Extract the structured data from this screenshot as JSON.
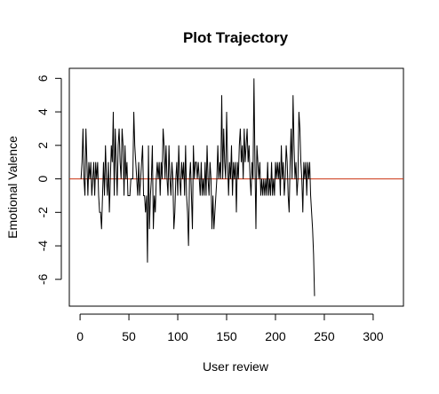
{
  "chart_data": {
    "type": "line",
    "title": "Plot Trajectory",
    "xlabel": "User review",
    "ylabel": "Emotional Valence",
    "xlim": [
      -11,
      331
    ],
    "ylim": [
      -7.6,
      6.6
    ],
    "x_ticks": [
      0,
      50,
      100,
      150,
      200,
      250,
      300
    ],
    "y_ticks": [
      -6,
      -4,
      -2,
      0,
      2,
      4,
      6
    ],
    "grid": false,
    "reference_line": {
      "y": 0,
      "color": "#cc3311"
    },
    "colors": {
      "series": "#000000",
      "axis": "#000000",
      "reference": "#cc3311"
    },
    "series": [
      {
        "values": [
          0,
          1,
          3,
          0,
          -1,
          3,
          1,
          -1,
          1,
          0,
          1,
          -1,
          0,
          1,
          -1,
          1,
          0,
          1,
          -1,
          -2,
          -2,
          -3,
          -1,
          1,
          -1,
          2,
          0,
          -1,
          1,
          -2,
          0,
          2,
          1,
          4,
          -1,
          3,
          1,
          -1,
          2,
          3,
          1,
          0,
          3,
          2,
          -1,
          2,
          0,
          1,
          -1,
          -1,
          -1,
          0,
          0,
          0,
          4,
          2,
          1,
          0,
          -1,
          1,
          -1,
          0,
          1,
          2,
          -1,
          -1,
          -2,
          -1,
          -5,
          2,
          -3,
          -1,
          0,
          2,
          -3,
          -1,
          -2,
          0,
          1,
          0,
          1,
          -1,
          1,
          0,
          3,
          2,
          0,
          2,
          0,
          -1,
          2,
          0,
          -1,
          1,
          0,
          -3,
          -2,
          0,
          1,
          -1,
          2,
          0,
          -1,
          1,
          0,
          1,
          -1,
          2,
          -1,
          -2,
          -4,
          0,
          1,
          -1,
          -3,
          2,
          0,
          1,
          1,
          0,
          1,
          0,
          -1,
          1,
          -1,
          0,
          -1,
          1,
          -1,
          2,
          0,
          -1,
          1,
          0,
          -3,
          -1,
          -3,
          -2,
          -1,
          0,
          2,
          0,
          1,
          0,
          5,
          0,
          3,
          1,
          0,
          4,
          1,
          -1,
          1,
          0,
          2,
          -1,
          1,
          0,
          1,
          -2,
          1,
          0,
          2,
          3,
          1,
          2,
          0,
          3,
          1,
          2,
          3,
          1,
          2,
          0,
          -1,
          1,
          0,
          6,
          1,
          -3,
          2,
          1,
          0,
          1,
          -1,
          0,
          -1,
          0,
          -1,
          0,
          -1,
          1,
          -1,
          0,
          -1,
          1,
          -1,
          0,
          -1,
          1,
          0,
          1,
          0,
          1,
          -1,
          2,
          0,
          1,
          -1,
          0,
          2,
          1,
          -1,
          -2,
          1,
          3,
          0,
          5,
          2,
          0,
          1,
          -1,
          0,
          4,
          3,
          1,
          0,
          -2,
          1,
          0,
          1,
          -1,
          1,
          0,
          1,
          -1,
          -2,
          -3,
          -4.5,
          -7
        ]
      }
    ]
  }
}
